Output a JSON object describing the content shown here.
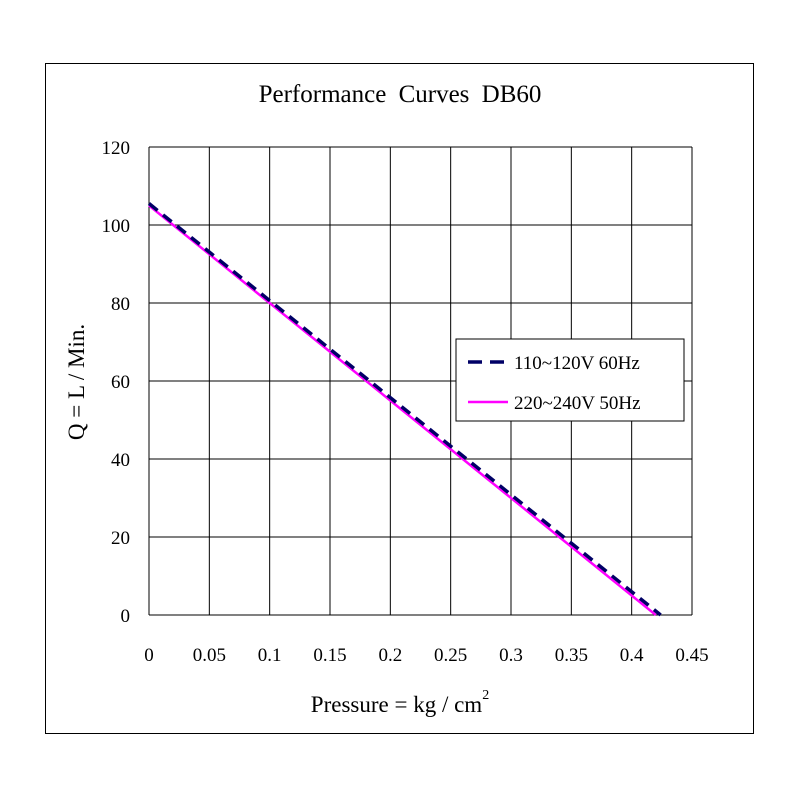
{
  "chart_data": {
    "type": "line",
    "title": "Performance  Curves  DB60",
    "xlabel_text": "Pressure = kg / cm",
    "xlabel_sup": "2",
    "ylabel": "Q = L / Min.",
    "xlim": [
      0,
      0.45
    ],
    "ylim": [
      0,
      120
    ],
    "x_ticks": [
      0,
      0.05,
      0.1,
      0.15,
      0.2,
      0.25,
      0.3,
      0.35,
      0.4,
      0.45
    ],
    "x_tick_labels": [
      "0",
      "0.05",
      "0.1",
      "0.15",
      "0.2",
      "0.25",
      "0.3",
      "0.35",
      "0.4",
      "0.45"
    ],
    "y_ticks": [
      0,
      20,
      40,
      60,
      80,
      100,
      120
    ],
    "y_tick_labels": [
      "0",
      "20",
      "40",
      "60",
      "80",
      "100",
      "120"
    ],
    "grid": true,
    "legend_position": "right-center",
    "series": [
      {
        "name": "110~120V 60Hz",
        "color": "#000066",
        "style": "dashed",
        "x": [
          0,
          0.424
        ],
        "y": [
          105.5,
          0
        ]
      },
      {
        "name": "220~240V 50Hz",
        "color": "#ff00ff",
        "style": "solid",
        "x": [
          0,
          0.42
        ],
        "y": [
          105,
          0
        ]
      }
    ]
  }
}
